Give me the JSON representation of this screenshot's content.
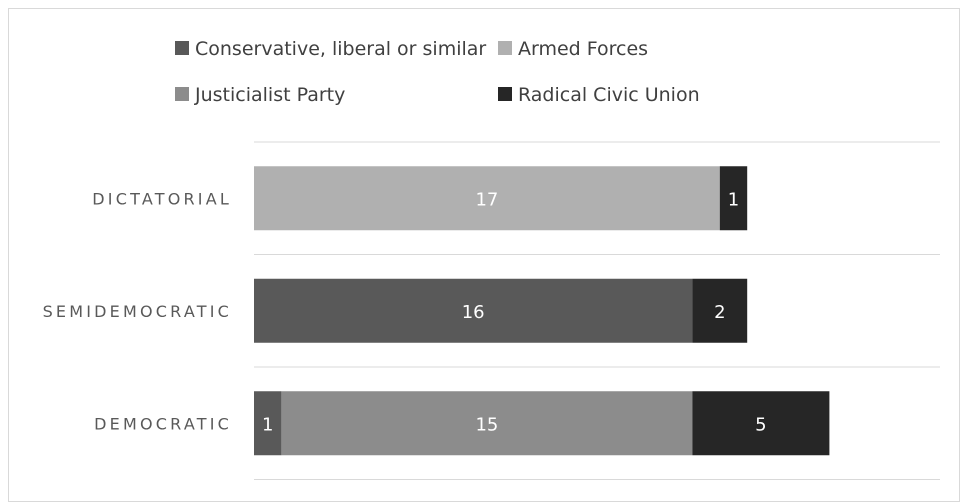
{
  "chart_data": {
    "type": "bar",
    "orientation": "horizontal",
    "stacked": true,
    "categories": [
      "DICTATORIAL",
      "SEMIDEMOCRATIC",
      "DEMOCRATIC"
    ],
    "series": [
      {
        "name": "Conservative, liberal or similar",
        "color": "#595959",
        "values": [
          0,
          16,
          1
        ]
      },
      {
        "name": "Armed Forces",
        "color": "#b0b0b0",
        "values": [
          17,
          0,
          0
        ]
      },
      {
        "name": "Justicialist Party",
        "color": "#8c8c8c",
        "values": [
          0,
          0,
          15
        ]
      },
      {
        "name": "Radical Civic Union",
        "color": "#262626",
        "values": [
          1,
          2,
          5
        ]
      }
    ],
    "grid": true,
    "legend_position": "top"
  }
}
